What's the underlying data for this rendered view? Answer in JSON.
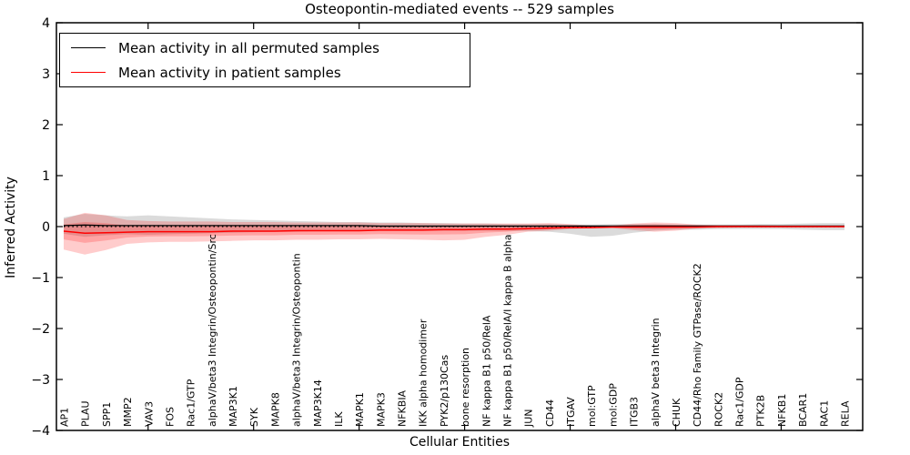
{
  "figure": {
    "background": "#ffffff"
  },
  "chart_data": {
    "type": "line",
    "title": "Osteopontin-mediated events -- 529 samples",
    "xlabel": "Cellular Entities",
    "ylabel": "Inferred Activity",
    "ylim": [
      -4,
      4
    ],
    "ytick_labels": [
      "4",
      "3",
      "2",
      "1",
      "0",
      "−1",
      "−2",
      "−3",
      "−4"
    ],
    "ytick_values": [
      4,
      3,
      2,
      1,
      0,
      -1,
      -2,
      -3,
      -4
    ],
    "x_major_tick_indices": [
      4,
      9,
      14,
      19,
      24,
      29,
      34
    ],
    "grid": false,
    "legend_position": "upper left",
    "categories": [
      "AP1",
      "PLAU",
      "SPP1",
      "MMP2",
      "VAV3",
      "FOS",
      "Rac1/GTP",
      "alphaV/beta3 Integrin/Osteopontin/Src",
      "MAP3K1",
      "SYK",
      "MAPK8",
      "alphaV/beta3 Integrin/Osteopontin",
      "MAP3K14",
      "ILK",
      "MAPK1",
      "MAPK3",
      "NFKBIA",
      "IKK alpha homodimer",
      "PYK2/p130Cas",
      "bone resorption",
      "NF kappa B1 p50/RelA",
      "NF kappa B1 p50/RelA/I kappa B alpha",
      "JUN",
      "CD44",
      "ITGAV",
      "mol:GTP",
      "mol:GDP",
      "ITGB3",
      "alphaV beta3 Integrin",
      "CHUK",
      "CD44/Rho Family GTPase/ROCK2",
      "ROCK2",
      "Rac1/GDP",
      "PTK2B",
      "NFKB1",
      "BCAR1",
      "RAC1",
      "RELA"
    ],
    "series": [
      {
        "name": "Mean activity in all permuted samples",
        "color": "#000000",
        "band_color": "rgba(125,125,125,0.28)",
        "values": [
          0.02,
          0.03,
          0.02,
          0.02,
          0.02,
          0.02,
          0.02,
          0.02,
          0.02,
          0.02,
          0.02,
          0.02,
          0.02,
          0.02,
          0.02,
          0.01,
          0.01,
          0.01,
          0.01,
          0.01,
          0.01,
          0.01,
          0.01,
          0.01,
          0.01,
          0.01,
          0.01,
          0.01,
          0.01,
          0.01,
          0.01,
          0.01,
          0.01,
          0.01,
          0.01,
          0.01,
          0.01,
          0.01
        ],
        "band_hi": [
          0.18,
          0.25,
          0.22,
          0.2,
          0.22,
          0.2,
          0.18,
          0.16,
          0.14,
          0.13,
          0.12,
          0.11,
          0.1,
          0.09,
          0.09,
          0.08,
          0.08,
          0.07,
          0.07,
          0.06,
          0.06,
          0.05,
          0.05,
          0.05,
          0.04,
          0.04,
          0.05,
          0.05,
          0.05,
          0.04,
          0.04,
          0.04,
          0.04,
          0.05,
          0.05,
          0.06,
          0.07,
          0.07
        ],
        "band_lo": [
          -0.14,
          -0.2,
          -0.17,
          -0.15,
          -0.16,
          -0.15,
          -0.14,
          -0.13,
          -0.12,
          -0.11,
          -0.1,
          -0.1,
          -0.09,
          -0.09,
          -0.08,
          -0.08,
          -0.08,
          -0.08,
          -0.08,
          -0.08,
          -0.08,
          -0.08,
          -0.09,
          -0.1,
          -0.14,
          -0.2,
          -0.18,
          -0.12,
          -0.08,
          -0.06,
          -0.06,
          -0.05,
          -0.05,
          -0.05,
          -0.05,
          -0.06,
          -0.07,
          -0.07
        ]
      },
      {
        "name": "Mean activity in patient samples",
        "color": "#ff0000",
        "band_color": "rgba(255,0,0,0.20)",
        "values": [
          -0.09,
          -0.13,
          -0.12,
          -0.11,
          -0.1,
          -0.1,
          -0.1,
          -0.1,
          -0.09,
          -0.09,
          -0.09,
          -0.08,
          -0.08,
          -0.08,
          -0.08,
          -0.07,
          -0.07,
          -0.07,
          -0.06,
          -0.06,
          -0.05,
          -0.05,
          -0.04,
          -0.03,
          -0.02,
          -0.02,
          -0.01,
          -0.01,
          -0.01,
          -0.01,
          -0.01,
          0.0,
          0.0,
          0.0,
          0.0,
          0.0,
          0.0,
          0.0
        ],
        "band_hi": [
          0.15,
          0.27,
          0.22,
          0.13,
          0.11,
          0.1,
          0.1,
          0.1,
          0.09,
          0.09,
          0.09,
          0.08,
          0.08,
          0.08,
          0.08,
          0.07,
          0.07,
          0.07,
          0.06,
          0.06,
          0.06,
          0.06,
          0.06,
          0.07,
          0.05,
          0.02,
          0.02,
          0.06,
          0.08,
          0.07,
          0.04,
          0.03,
          0.03,
          0.03,
          0.02,
          0.02,
          0.02,
          0.02
        ],
        "band_lo": [
          -0.45,
          -0.55,
          -0.46,
          -0.34,
          -0.31,
          -0.3,
          -0.3,
          -0.29,
          -0.28,
          -0.27,
          -0.27,
          -0.26,
          -0.26,
          -0.25,
          -0.25,
          -0.24,
          -0.25,
          -0.26,
          -0.27,
          -0.26,
          -0.2,
          -0.16,
          -0.1,
          -0.08,
          -0.05,
          -0.03,
          -0.03,
          -0.07,
          -0.1,
          -0.08,
          -0.04,
          -0.03,
          -0.02,
          -0.02,
          -0.02,
          -0.02,
          -0.02,
          -0.02
        ]
      }
    ],
    "zero_line": {
      "value": 0,
      "style": "dotted",
      "color": "#000000"
    }
  }
}
